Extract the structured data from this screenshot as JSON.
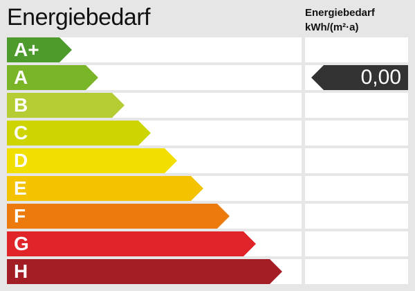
{
  "title": "Energiebedarf",
  "column_header": {
    "line1": "Energiebedarf",
    "line2": "kWh/(m²·a)"
  },
  "classes": [
    {
      "label": "A+",
      "color": "#4f9a2c"
    },
    {
      "label": "A",
      "color": "#7ab528"
    },
    {
      "label": "B",
      "color": "#b5cc33"
    },
    {
      "label": "C",
      "color": "#cdd400"
    },
    {
      "label": "D",
      "color": "#f0df00"
    },
    {
      "label": "E",
      "color": "#f5c200"
    },
    {
      "label": "F",
      "color": "#ec7a0c"
    },
    {
      "label": "G",
      "color": "#e0252a"
    },
    {
      "label": "H",
      "color": "#a31d24"
    }
  ],
  "indicator": {
    "value": "0,00",
    "class": "A",
    "color": "#333333"
  }
}
